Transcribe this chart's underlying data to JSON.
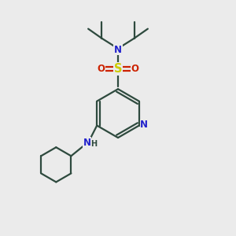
{
  "bg_color": "#ebebeb",
  "bond_color": "#2e4a3e",
  "N_color": "#2222cc",
  "S_color": "#cccc00",
  "O_color": "#cc2200",
  "lw": 1.6,
  "fs": 8.5,
  "figsize": [
    3.0,
    3.0
  ],
  "dpi": 100,
  "xlim": [
    0,
    10
  ],
  "ylim": [
    0,
    10
  ]
}
